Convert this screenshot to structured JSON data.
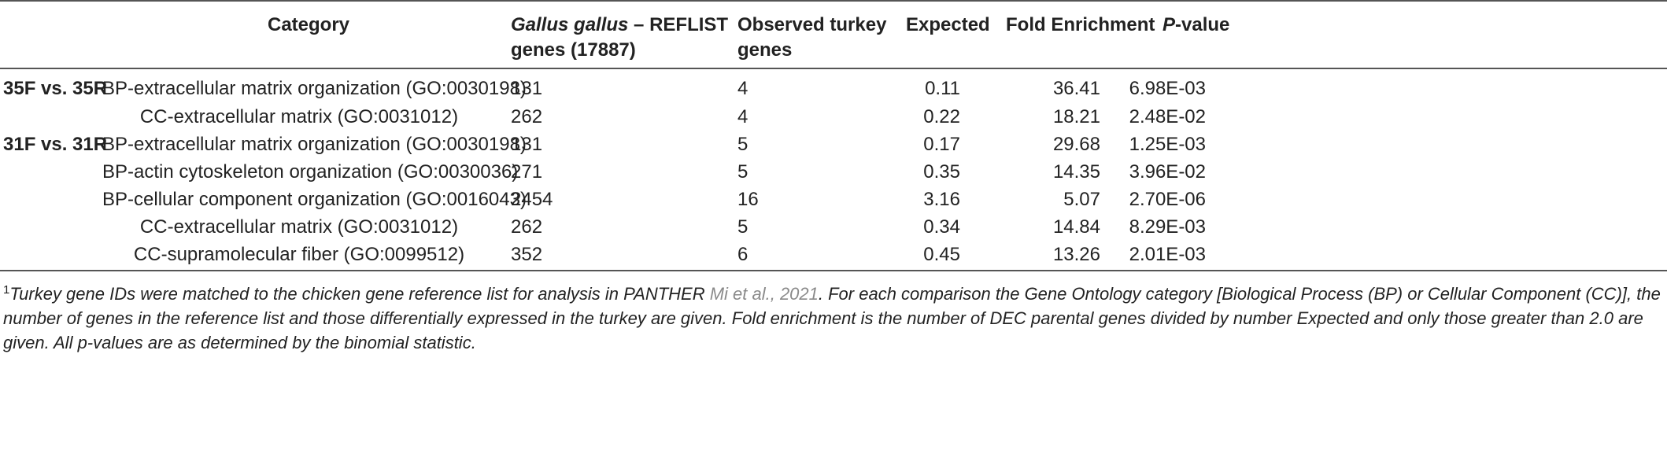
{
  "table": {
    "headers": {
      "category": "Category",
      "reflist_species": "Gallus gallus",
      "reflist_rest_line1": " – REFLIST",
      "reflist_line2": "genes (17887)",
      "observed_line1": "Observed turkey",
      "observed_line2": "genes",
      "expected": "Expected",
      "fold": "Fold Enrichment",
      "pvalue_p": "P",
      "pvalue_rest": "-value"
    },
    "rows": [
      {
        "group": "35F vs. 35R",
        "category": "BP-extracellular matrix organization (GO:0030198)",
        "reflist": "131",
        "observed": "4",
        "expected": "0.11",
        "fold": "36.41",
        "pvalue": "6.98E-03"
      },
      {
        "group": "",
        "category": "CC-extracellular matrix (GO:0031012)",
        "reflist": "262",
        "observed": "4",
        "expected": "0.22",
        "fold": "18.21",
        "pvalue": "2.48E-02"
      },
      {
        "group": "31F vs. 31R",
        "category": "BP-extracellular matrix organization (GO:0030198)",
        "reflist": "131",
        "observed": "5",
        "expected": "0.17",
        "fold": "29.68",
        "pvalue": "1.25E-03"
      },
      {
        "group": "",
        "category": "BP-actin cytoskeleton organization (GO:0030036)",
        "reflist": "271",
        "observed": "5",
        "expected": "0.35",
        "fold": "14.35",
        "pvalue": "3.96E-02"
      },
      {
        "group": "",
        "category": "BP-cellular component organization (GO:0016043)",
        "reflist": "2454",
        "observed": "16",
        "expected": "3.16",
        "fold": "5.07",
        "pvalue": "2.70E-06"
      },
      {
        "group": "",
        "category": "CC-extracellular matrix (GO:0031012)",
        "reflist": "262",
        "observed": "5",
        "expected": "0.34",
        "fold": "14.84",
        "pvalue": "8.29E-03"
      },
      {
        "group": "",
        "category": "CC-supramolecular fiber (GO:0099512)",
        "reflist": "352",
        "observed": "6",
        "expected": "0.45",
        "fold": "13.26",
        "pvalue": "2.01E-03"
      }
    ]
  },
  "footnote": {
    "marker": "1",
    "text_before": "Turkey gene IDs were matched to the chicken gene reference list for analysis in PANTHER ",
    "citation": "Mi et al., 2021",
    "text_after": ". For each comparison the Gene Ontology category [Biological Process (BP) or Cellular Component (CC)], the number of genes in the reference list and those differentially expressed in the turkey are given. Fold enrichment is the number of DEC parental genes divided by number Expected and only those greater than 2.0 are given. All p-values are as determined by the binomial statistic."
  }
}
